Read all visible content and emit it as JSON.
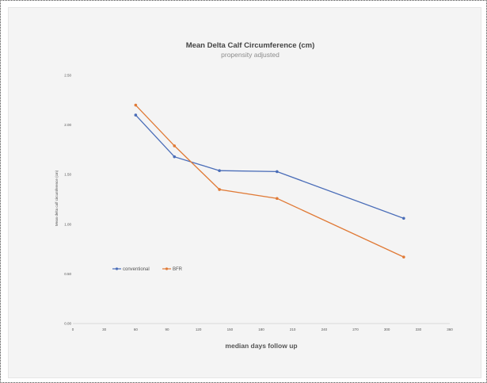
{
  "chart_data": {
    "type": "line",
    "title": "Mean Delta Calf Circumference (cm)",
    "subtitle": "propensity adjusted",
    "xlabel": "median days follow up",
    "ylabel": "Mean delta calf circumference (cm)",
    "xlim": [
      0,
      360
    ],
    "ylim": [
      0,
      2.5
    ],
    "xticks": [
      0,
      30,
      60,
      90,
      120,
      150,
      180,
      210,
      240,
      270,
      300,
      330,
      360
    ],
    "yticks": [
      "0.00",
      "0.50",
      "1.00",
      "1.50",
      "2.00",
      "2.50"
    ],
    "grid": false,
    "legend_position": "left",
    "series": [
      {
        "name": "conventional",
        "color": "#4a6db8",
        "x": [
          60,
          97,
          140,
          195,
          316
        ],
        "y": [
          2.1,
          1.68,
          1.54,
          1.53,
          1.06
        ]
      },
      {
        "name": "BFR",
        "color": "#e07a36",
        "x": [
          60,
          97,
          140,
          195,
          316
        ],
        "y": [
          2.2,
          1.79,
          1.35,
          1.26,
          0.67
        ]
      }
    ]
  }
}
